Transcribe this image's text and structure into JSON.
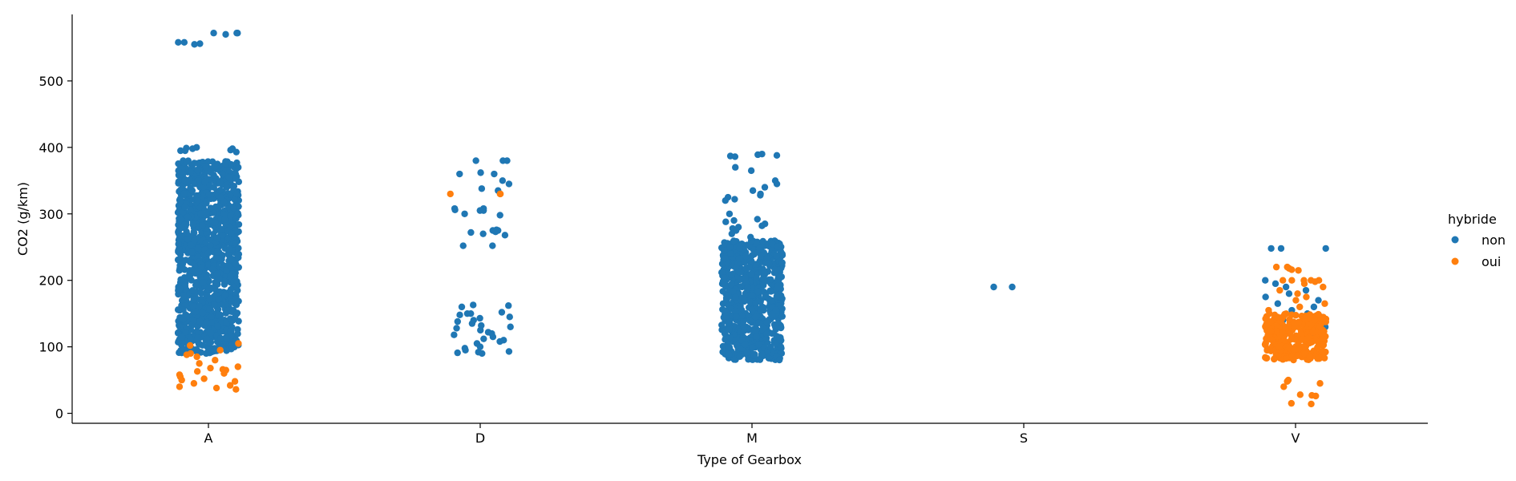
{
  "chart_data": {
    "type": "scatter",
    "subtype": "strip",
    "xlabel": "Type of Gearbox",
    "ylabel": "CO2 (g/km)",
    "categories": [
      "A",
      "D",
      "M",
      "S",
      "V"
    ],
    "yticks": [
      0,
      100,
      200,
      300,
      400,
      500
    ],
    "ylim": [
      -15,
      600
    ],
    "grid": false,
    "legend": {
      "title": "hybride",
      "placement": "right",
      "entries": [
        {
          "label": "non",
          "color": "#1f77b4"
        },
        {
          "label": "oui",
          "color": "#ff7f0e"
        }
      ]
    },
    "series": [
      {
        "name": "non",
        "color": "#1f77b4",
        "groups": {
          "A": {
            "dense": [
              [
                90,
                380
              ]
            ],
            "values": [
              555,
              558,
              572,
              572,
              556,
              570,
              572,
              558,
              400,
              398,
              396,
              395,
              393,
              399,
              395,
              398,
              380,
              378,
              372,
              370,
              365,
              360,
              355,
              350,
              345,
              340,
              335,
              330,
              325,
              320,
              315,
              310
            ]
          },
          "D": {
            "values": [
              380,
              380,
              380,
              362,
              360,
              360,
              350,
              345,
              338,
              335,
              308,
              308,
              306,
              305,
              305,
              300,
              298,
              276,
              275,
              275,
              273,
              272,
              270,
              268,
              252,
              252,
              163,
              162,
              160,
              152,
              150,
              150,
              148,
              145,
              143,
              140,
              138,
              135,
              132,
              130,
              128,
              125,
              122,
              120,
              118,
              115,
              112,
              110,
              108,
              105,
              100,
              98,
              95,
              93,
              92,
              91,
              90
            ]
          },
          "M": {
            "dense": [
              [
                80,
                260
              ]
            ],
            "values": [
              390,
              389,
              388,
              387,
              386,
              370,
              365,
              350,
              345,
              340,
              335,
              330,
              328,
              325,
              322,
              320,
              300,
              292,
              290,
              288,
              285,
              282,
              280,
              278,
              275,
              270,
              265
            ]
          },
          "S": {
            "values": [
              190,
              190
            ]
          },
          "V": {
            "values": [
              248,
              248,
              248,
              200,
              195,
              190,
              185,
              180,
              175,
              170,
              165,
              160,
              155,
              150,
              145,
              140,
              135,
              130,
              125,
              120
            ]
          }
        }
      },
      {
        "name": "oui",
        "color": "#ff7f0e",
        "groups": {
          "A": {
            "values": [
              105,
              102,
              95,
              90,
              88,
              85,
              80,
              75,
              70,
              68,
              66,
              65,
              63,
              60,
              58,
              55,
              52,
              50,
              48,
              45,
              42,
              40,
              38,
              36
            ]
          },
          "D": {
            "values": [
              330,
              330,
              330
            ]
          },
          "M": {
            "values": []
          },
          "S": {
            "values": []
          },
          "V": {
            "dense": [
              [
                80,
                150
              ]
            ],
            "values": [
              220,
              220,
              218,
              216,
              215,
              200,
              200,
              200,
              200,
              200,
              198,
              195,
              190,
              185,
              180,
              175,
              170,
              165,
              160,
              155,
              50,
              48,
              45,
              40,
              28,
              27,
              26,
              15,
              14
            ]
          }
        }
      }
    ]
  }
}
